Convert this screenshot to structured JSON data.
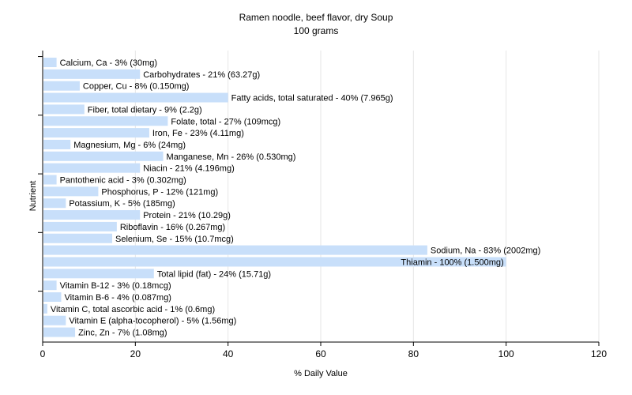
{
  "chart_data": {
    "type": "bar",
    "orientation": "horizontal",
    "title": "Ramen noodle, beef flavor, dry Soup",
    "subtitle": "100 grams",
    "xlabel": "% Daily Value",
    "ylabel": "Nutrient",
    "xlim": [
      0,
      120
    ],
    "xticks": [
      0,
      20,
      40,
      60,
      80,
      100,
      120
    ],
    "grid": true,
    "bar_color": "#c8dffa",
    "categories": [
      "Calcium, Ca",
      "Carbohydrates",
      "Copper, Cu",
      "Fatty acids, total saturated",
      "Fiber, total dietary",
      "Folate, total",
      "Iron, Fe",
      "Magnesium, Mg",
      "Manganese, Mn",
      "Niacin",
      "Pantothenic acid",
      "Phosphorus, P",
      "Potassium, K",
      "Protein",
      "Riboflavin",
      "Selenium, Se",
      "Sodium, Na",
      "Thiamin",
      "Total lipid (fat)",
      "Vitamin B-12",
      "Vitamin B-6",
      "Vitamin C, total ascorbic acid",
      "Vitamin E (alpha-tocopherol)",
      "Zinc, Zn"
    ],
    "values": [
      3,
      21,
      8,
      40,
      9,
      27,
      23,
      6,
      26,
      21,
      3,
      12,
      5,
      21,
      16,
      15,
      83,
      100,
      24,
      3,
      4,
      1,
      5,
      7
    ],
    "labels": [
      "Calcium, Ca - 3% (30mg)",
      "Carbohydrates - 21% (63.27g)",
      "Copper, Cu - 8% (0.150mg)",
      "Fatty acids, total saturated - 40% (7.965g)",
      "Fiber, total dietary - 9% (2.2g)",
      "Folate, total - 27% (109mcg)",
      "Iron, Fe - 23% (4.11mg)",
      "Magnesium, Mg - 6% (24mg)",
      "Manganese, Mn - 26% (0.530mg)",
      "Niacin - 21% (4.196mg)",
      "Pantothenic acid - 3% (0.302mg)",
      "Phosphorus, P - 12% (121mg)",
      "Potassium, K - 5% (185mg)",
      "Protein - 21% (10.29g)",
      "Riboflavin - 16% (0.267mg)",
      "Selenium, Se - 15% (10.7mcg)",
      "Sodium, Na - 83% (2002mg)",
      "Thiamin - 100% (1.500mg)",
      "Total lipid (fat) - 24% (15.71g)",
      "Vitamin B-12 - 3% (0.18mcg)",
      "Vitamin B-6 - 4% (0.087mg)",
      "Vitamin C, total ascorbic acid - 1% (0.6mg)",
      "Vitamin E (alpha-tocopherol) - 5% (1.56mg)",
      "Zinc, Zn - 7% (1.08mg)"
    ]
  }
}
